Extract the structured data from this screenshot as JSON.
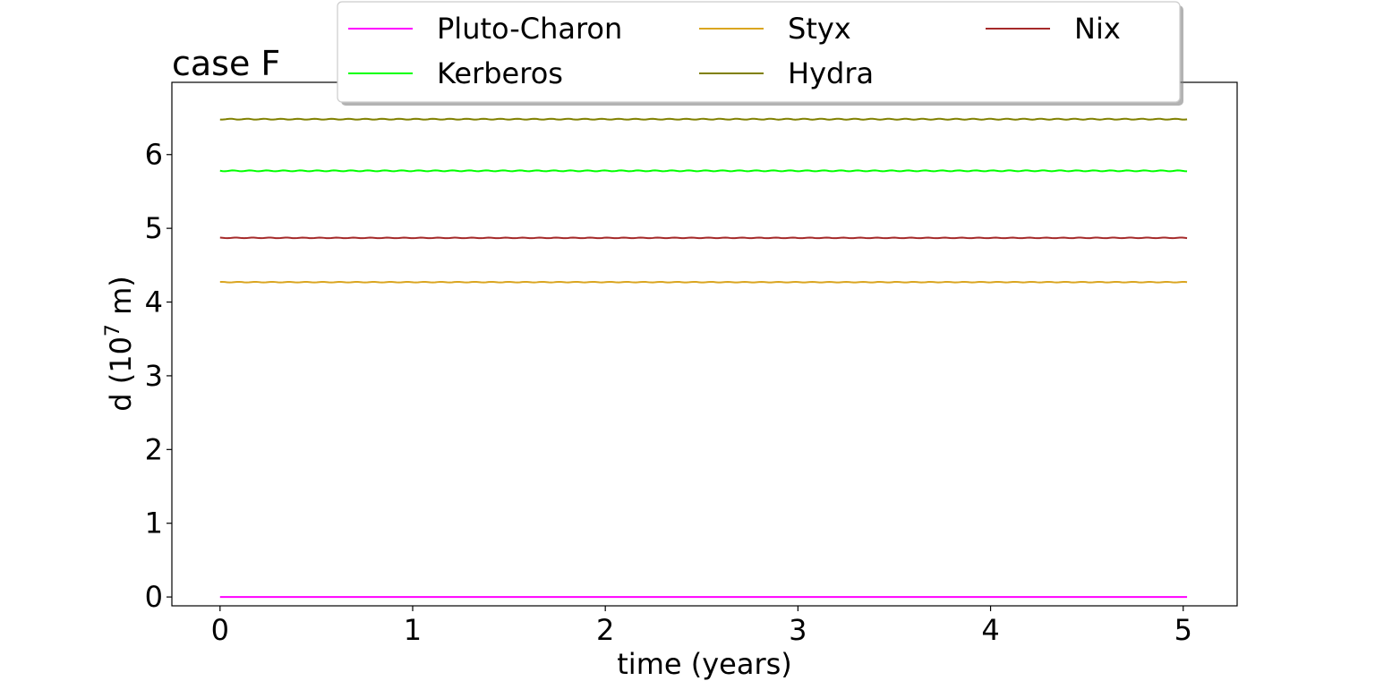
{
  "chart_data": {
    "type": "line",
    "title": "case F",
    "xlabel": "time (years)",
    "ylabel_main": "d (10",
    "ylabel_exponent": "7",
    "ylabel_unit": " m)",
    "xlim": [
      -0.25,
      5.28
    ],
    "ylim": [
      -0.12,
      6.98
    ],
    "xticks": [
      0,
      1,
      2,
      3,
      4,
      5
    ],
    "yticks": [
      0,
      1,
      2,
      3,
      4,
      5,
      6
    ],
    "grid": false,
    "legend": {
      "placement": "top-center",
      "columns": 3
    },
    "x": [
      0,
      5.02
    ],
    "series": [
      {
        "name": "Pluto-Charon",
        "color": "#ff00ff",
        "values": [
          0.0,
          0.0
        ],
        "wobble": 0
      },
      {
        "name": "Styx",
        "color": "#daa520",
        "values": [
          4.27,
          4.27
        ],
        "wobble": 0.004
      },
      {
        "name": "Nix",
        "color": "#a52a2a",
        "values": [
          4.87,
          4.87
        ],
        "wobble": 0.004
      },
      {
        "name": "Kerberos",
        "color": "#00ff00",
        "values": [
          5.78,
          5.78
        ],
        "wobble": 0.006
      },
      {
        "name": "Hydra",
        "color": "#808000",
        "values": [
          6.48,
          6.48
        ],
        "wobble": 0.006
      }
    ]
  }
}
